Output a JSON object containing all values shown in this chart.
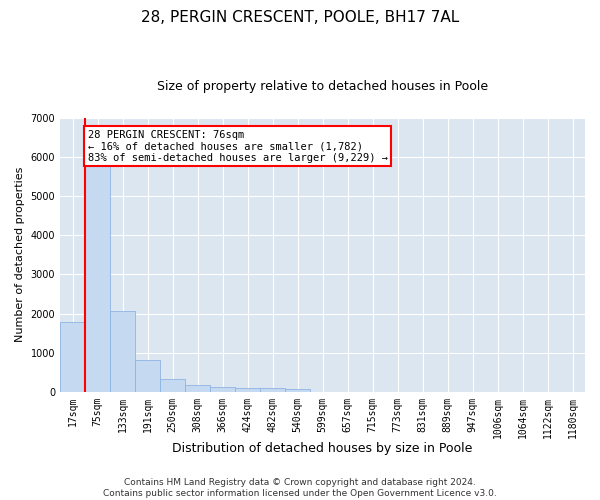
{
  "title1": "28, PERGIN CRESCENT, POOLE, BH17 7AL",
  "title2": "Size of property relative to detached houses in Poole",
  "xlabel": "Distribution of detached houses by size in Poole",
  "ylabel": "Number of detached properties",
  "bar_labels": [
    "17sqm",
    "75sqm",
    "133sqm",
    "191sqm",
    "250sqm",
    "308sqm",
    "366sqm",
    "424sqm",
    "482sqm",
    "540sqm",
    "599sqm",
    "657sqm",
    "715sqm",
    "773sqm",
    "831sqm",
    "889sqm",
    "947sqm",
    "1006sqm",
    "1064sqm",
    "1122sqm",
    "1180sqm"
  ],
  "bar_values": [
    1782,
    5800,
    2060,
    820,
    340,
    185,
    115,
    105,
    95,
    80,
    0,
    0,
    0,
    0,
    0,
    0,
    0,
    0,
    0,
    0,
    0
  ],
  "bar_color": "#c5d9f1",
  "bar_edge_color": "#8db4e2",
  "annotation_text": "28 PERGIN CRESCENT: 76sqm\n← 16% of detached houses are smaller (1,782)\n83% of semi-detached houses are larger (9,229) →",
  "annotation_box_color": "white",
  "annotation_box_edge_color": "red",
  "red_line_color": "red",
  "ylim": [
    0,
    7000
  ],
  "yticks": [
    0,
    1000,
    2000,
    3000,
    4000,
    5000,
    6000,
    7000
  ],
  "footer1": "Contains HM Land Registry data © Crown copyright and database right 2024.",
  "footer2": "Contains public sector information licensed under the Open Government Licence v3.0.",
  "plot_bg_color": "#dce6f1",
  "grid_color": "white",
  "title1_fontsize": 11,
  "title2_fontsize": 9,
  "xlabel_fontsize": 9,
  "ylabel_fontsize": 8,
  "tick_fontsize": 7,
  "annotation_fontsize": 7.5,
  "footer_fontsize": 6.5
}
